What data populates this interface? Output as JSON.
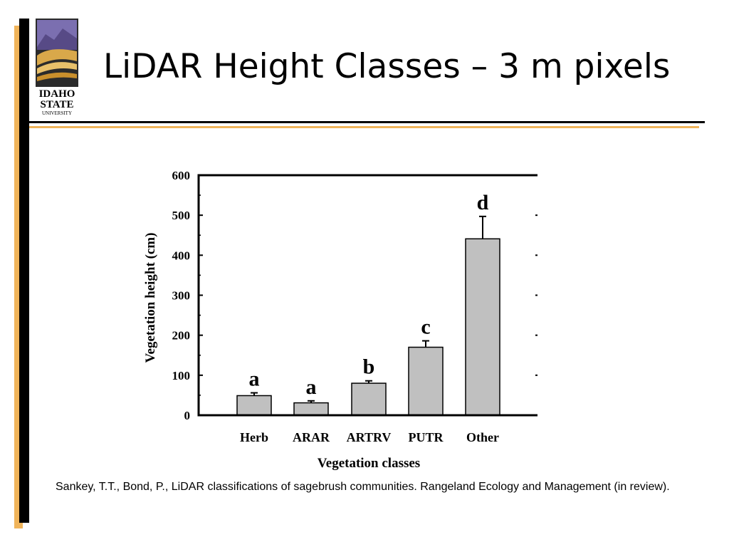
{
  "slide": {
    "title": "LiDAR Height Classes – 3 m pixels",
    "citation": "Sankey, T.T., Bond, P.,  LiDAR classifications of sagebrush communities. Rangeland Ecology and Management (in review).",
    "logo": {
      "line1": "IDAHO",
      "line2": "STATE",
      "line3": "UNIVERSITY"
    },
    "accent_color": "#f0b45a"
  },
  "chart_data": {
    "type": "bar",
    "categories": [
      "Herb",
      "ARAR",
      "ARTRV",
      "PUTR",
      "Other"
    ],
    "values": [
      49,
      31,
      80,
      170,
      441
    ],
    "errors": [
      7,
      5,
      6,
      16,
      56
    ],
    "letters": [
      "a",
      "a",
      "b",
      "c",
      "d"
    ],
    "title": "",
    "xlabel": "Vegetation classes",
    "ylabel": "Vegetation height (cm)",
    "ylim": [
      0,
      600
    ],
    "yticks": [
      0,
      100,
      200,
      300,
      400,
      500,
      600
    ],
    "grid": false,
    "bar_color": "#c0c0c0"
  }
}
